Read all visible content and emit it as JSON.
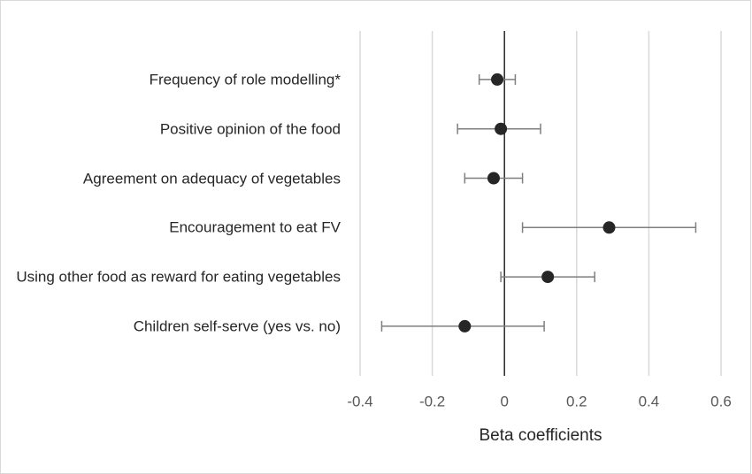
{
  "chart_data": {
    "type": "forest",
    "categories": [
      "Frequency of role modelling*",
      "Positive opinion of the food",
      "Agreement on adequacy of vegetables",
      "Encouragement to eat FV",
      "Using other food as reward for eating vegetables",
      "Children self-serve (yes vs. no)"
    ],
    "values": [
      -0.02,
      -0.01,
      -0.03,
      0.29,
      0.12,
      -0.11
    ],
    "lower": [
      -0.07,
      -0.13,
      -0.11,
      0.05,
      -0.01,
      -0.34
    ],
    "upper": [
      0.03,
      0.1,
      0.05,
      0.53,
      0.25,
      0.11
    ],
    "xlabel": "Beta coefficients",
    "xlim": [
      -0.4,
      0.6
    ],
    "xticks": [
      -0.4,
      -0.2,
      0,
      0.2,
      0.4,
      0.6
    ],
    "grid": true,
    "color": "#262626",
    "error_color": "#7f7f7f"
  }
}
